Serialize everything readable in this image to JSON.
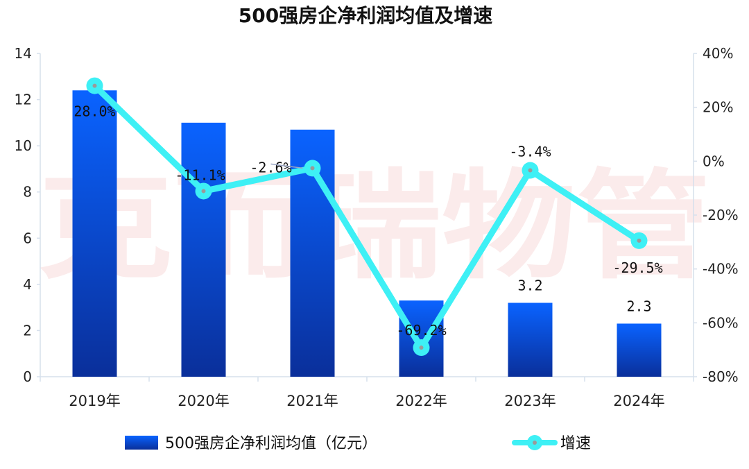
{
  "watermark": "克而瑞物管",
  "chart_data": {
    "type": "bar",
    "title": "500强房企净利润均值及增速",
    "categories": [
      "2019年",
      "2020年",
      "2021年",
      "2022年",
      "2023年",
      "2024年"
    ],
    "series": [
      {
        "name": "500强房企净利润均值（亿元）",
        "type": "bar",
        "axis": "left",
        "values": [
          12.4,
          11.0,
          10.7,
          3.3,
          3.2,
          2.3
        ],
        "labels": [
          "",
          "",
          "",
          "",
          "3.2",
          "2.3"
        ],
        "color_top": "#0a63ff",
        "color_bottom": "#0a2f9a"
      },
      {
        "name": "增速",
        "type": "line",
        "axis": "right",
        "values": [
          28.0,
          -11.1,
          -2.6,
          -69.2,
          -3.4,
          -29.5
        ],
        "labels": [
          "28.0%",
          "-11.1%",
          "-2.6%",
          "-69.2%",
          "-3.4%",
          "-29.5%"
        ],
        "color": "#3ef0f5",
        "marker_color": "#9a9a9a"
      }
    ],
    "y_left": {
      "min": 0,
      "max": 14,
      "ticks": [
        "0",
        "2",
        "4",
        "6",
        "8",
        "10",
        "12",
        "14"
      ]
    },
    "y_right": {
      "min": -80,
      "max": 40,
      "ticks": [
        "-80%",
        "-60%",
        "-40%",
        "-20%",
        "0%",
        "20%",
        "40%"
      ]
    },
    "grid": false,
    "legend": "bottom",
    "axis_color": "#d6e0ec"
  }
}
